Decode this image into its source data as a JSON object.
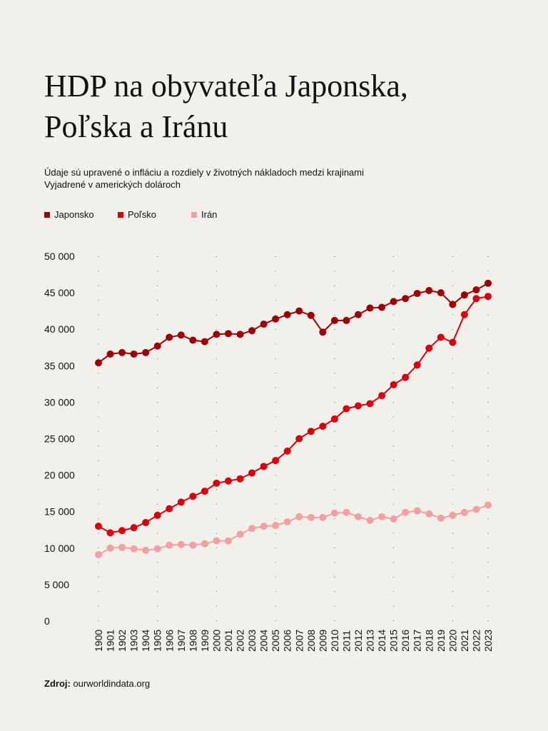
{
  "chart_data": {
    "type": "line",
    "title": "HDP na obyvateľa Japonska, Poľska a Iránu",
    "subtitle_lines": [
      "Údaje sú upravené o infláciu a rozdiely v životných nákladoch medzi krajinami",
      "Vyjadrené v amerických dolároch"
    ],
    "xlabel": "",
    "ylabel": "",
    "ylim": [
      0,
      50000
    ],
    "yticks": [
      0,
      5000,
      10000,
      15000,
      20000,
      25000,
      30000,
      35000,
      40000,
      45000,
      50000
    ],
    "ytick_labels": [
      "0",
      "5 000",
      "10 000",
      "15 000",
      "20 000",
      "25 000",
      "30 000",
      "35 000",
      "40 000",
      "45 000",
      "50 000"
    ],
    "x": [
      "1900",
      "1901",
      "1902",
      "1903",
      "1904",
      "1905",
      "1906",
      "1907",
      "1908",
      "1909",
      "2000",
      "2001",
      "2002",
      "2003",
      "2004",
      "2005",
      "2006",
      "2007",
      "2008",
      "2009",
      "2010",
      "2011",
      "2012",
      "2013",
      "2014",
      "2015",
      "2016",
      "2017",
      "2018",
      "2019",
      "2020",
      "2021",
      "2022",
      "2023"
    ],
    "grid": "vertical dotted every 5 points",
    "legend_position": "top-left",
    "series": [
      {
        "name": "Japonsko",
        "color": "#9b0006",
        "values": [
          35400,
          36600,
          36800,
          36600,
          36800,
          37700,
          38900,
          39200,
          38500,
          38300,
          39300,
          39400,
          39300,
          39800,
          40700,
          41400,
          42000,
          42500,
          41900,
          39600,
          41200,
          41200,
          42000,
          42900,
          43000,
          43800,
          44200,
          44900,
          45300,
          45000,
          43400,
          44700,
          45400,
          46300
        ]
      },
      {
        "name": "Poľsko",
        "color": "#d6000f",
        "values": [
          13000,
          12100,
          12400,
          12800,
          13500,
          14500,
          15400,
          16300,
          17100,
          17800,
          18900,
          19200,
          19500,
          20300,
          21200,
          22000,
          23300,
          25000,
          26000,
          26700,
          27700,
          29100,
          29500,
          29800,
          30900,
          32400,
          33400,
          35100,
          37400,
          38900,
          38200,
          42000,
          44200,
          44500
        ]
      },
      {
        "name": "Irán",
        "color": "#f2a0a4",
        "values": [
          9100,
          10000,
          10100,
          9900,
          9700,
          9900,
          10400,
          10500,
          10400,
          10600,
          11000,
          11000,
          11900,
          12700,
          13000,
          13100,
          13600,
          14300,
          14200,
          14200,
          14800,
          14900,
          14300,
          13800,
          14300,
          14000,
          14900,
          15100,
          14700,
          14100,
          14500,
          14900,
          15300,
          15900
        ]
      }
    ]
  },
  "source_label": "Zdroj:",
  "source_value": "ourworldindata.org"
}
